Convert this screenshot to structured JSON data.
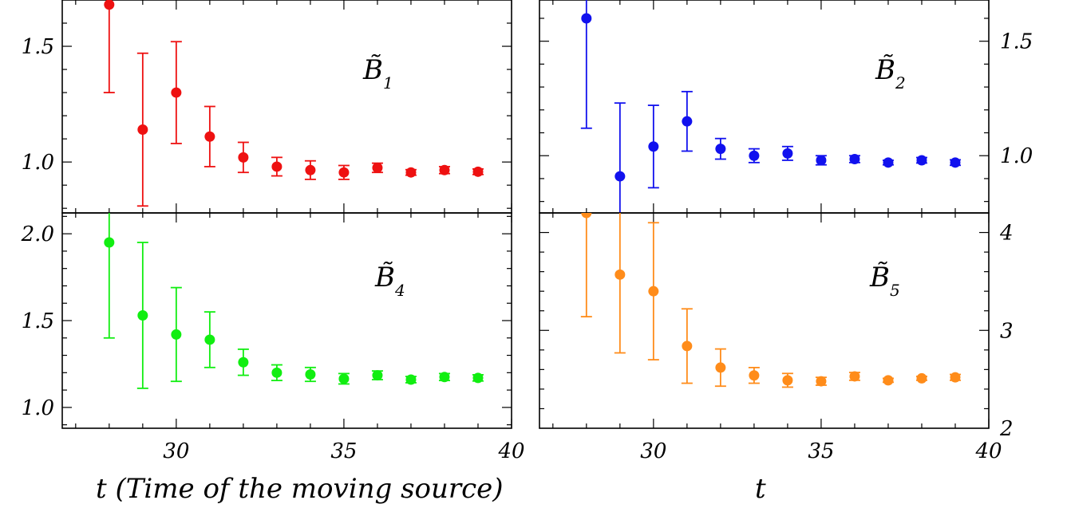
{
  "chart_data": [
    {
      "type": "scatter",
      "label": "B̃",
      "label_sub": "1",
      "color": "#ee1111",
      "x": [
        28,
        29,
        30,
        31,
        32,
        33,
        34,
        35,
        36,
        37,
        38,
        39
      ],
      "y": [
        1.68,
        1.14,
        1.3,
        1.11,
        1.02,
        0.98,
        0.965,
        0.955,
        0.975,
        0.955,
        0.965,
        0.958
      ],
      "err_lo": [
        0.38,
        0.33,
        0.22,
        0.13,
        0.065,
        0.04,
        0.04,
        0.03,
        0.02,
        0.012,
        0.015,
        0.012
      ],
      "err_hi": [
        0.38,
        0.33,
        0.22,
        0.13,
        0.065,
        0.04,
        0.04,
        0.03,
        0.02,
        0.012,
        0.015,
        0.012
      ],
      "xlim": [
        26.6,
        40
      ],
      "ylim": [
        0.78,
        1.7
      ],
      "yticks": [
        1.0,
        1.5
      ],
      "ytick_labels": [
        "1.0",
        "1.5"
      ],
      "yaxis_side": "left"
    },
    {
      "type": "scatter",
      "label": "B̃",
      "label_sub": "2",
      "color": "#1111ee",
      "x": [
        28,
        29,
        30,
        31,
        32,
        33,
        34,
        35,
        36,
        37,
        38,
        39
      ],
      "y": [
        1.6,
        0.91,
        1.04,
        1.15,
        1.03,
        1.0,
        1.01,
        0.98,
        0.985,
        0.97,
        0.98,
        0.97
      ],
      "err_lo": [
        0.48,
        0.32,
        0.18,
        0.13,
        0.045,
        0.03,
        0.03,
        0.02,
        0.015,
        0.01,
        0.012,
        0.012
      ],
      "err_hi": [
        0.48,
        0.32,
        0.18,
        0.13,
        0.045,
        0.03,
        0.03,
        0.02,
        0.015,
        0.01,
        0.012,
        0.012
      ],
      "xlim": [
        26.6,
        40
      ],
      "ylim": [
        0.75,
        1.68
      ],
      "yticks": [
        1.0,
        1.5
      ],
      "ytick_labels": [
        "1.0",
        "1.5"
      ],
      "yaxis_side": "right"
    },
    {
      "type": "scatter",
      "label": "B̃",
      "label_sub": "4",
      "color": "#11ee11",
      "x": [
        28,
        29,
        30,
        31,
        32,
        33,
        34,
        35,
        36,
        37,
        38,
        39
      ],
      "y": [
        1.95,
        1.53,
        1.42,
        1.39,
        1.26,
        1.2,
        1.19,
        1.165,
        1.185,
        1.16,
        1.175,
        1.17
      ],
      "err_lo": [
        0.55,
        0.42,
        0.27,
        0.16,
        0.075,
        0.045,
        0.04,
        0.03,
        0.025,
        0.018,
        0.02,
        0.018
      ],
      "err_hi": [
        0.55,
        0.42,
        0.27,
        0.16,
        0.075,
        0.045,
        0.04,
        0.03,
        0.025,
        0.018,
        0.02,
        0.018
      ],
      "xlim": [
        26.6,
        40
      ],
      "ylim": [
        0.88,
        2.12
      ],
      "yticks": [
        1.0,
        1.5,
        2.0
      ],
      "ytick_labels": [
        "1.0",
        "1.5",
        "2.0"
      ],
      "yaxis_side": "left"
    },
    {
      "type": "scatter",
      "label": "B̃",
      "label_sub": "5",
      "color": "#ff8c1a",
      "x": [
        28,
        29,
        30,
        31,
        32,
        33,
        34,
        35,
        36,
        37,
        38,
        39
      ],
      "y": [
        4.2,
        3.57,
        3.4,
        2.84,
        2.62,
        2.54,
        2.49,
        2.48,
        2.53,
        2.49,
        2.51,
        2.52
      ],
      "err_lo": [
        1.06,
        0.8,
        0.7,
        0.38,
        0.19,
        0.08,
        0.07,
        0.04,
        0.04,
        0.02,
        0.02,
        0.03
      ],
      "err_hi": [
        1.06,
        0.8,
        0.7,
        0.38,
        0.19,
        0.08,
        0.07,
        0.04,
        0.04,
        0.02,
        0.02,
        0.03
      ],
      "xlim": [
        26.6,
        40
      ],
      "ylim": [
        2.0,
        4.2
      ],
      "yticks": [
        2,
        3,
        4
      ],
      "ytick_labels": [
        "2",
        "3",
        "4"
      ],
      "yaxis_side": "right"
    }
  ],
  "xaxis": {
    "ticks": [
      30,
      35,
      40
    ],
    "tick_labels": [
      "30",
      "35",
      "40"
    ],
    "left_label": "t (Time of the moving source)",
    "right_label": "t"
  }
}
